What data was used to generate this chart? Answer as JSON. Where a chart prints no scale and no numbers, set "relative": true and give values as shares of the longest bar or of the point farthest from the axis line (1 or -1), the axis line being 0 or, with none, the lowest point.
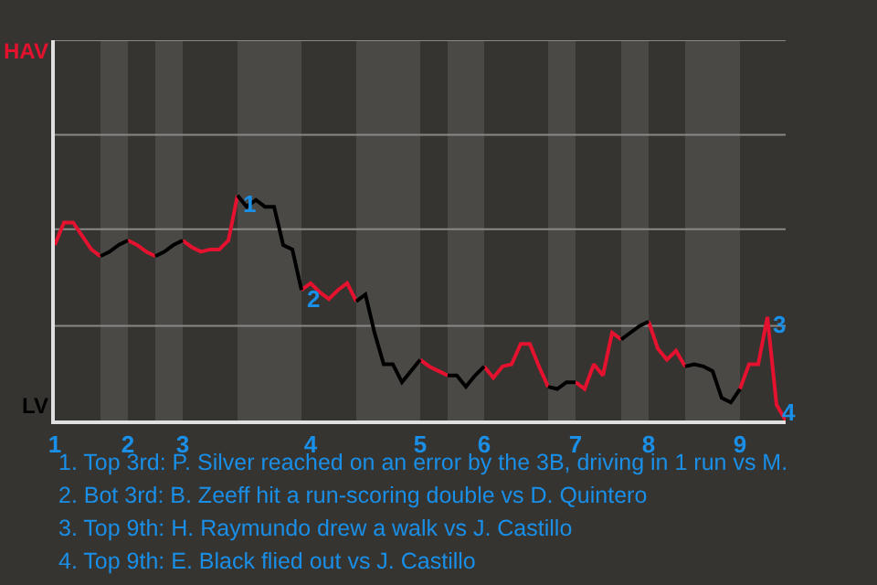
{
  "chart_data": {
    "type": "line",
    "relative": true,
    "categories": [
      "1",
      null,
      null,
      null,
      null,
      null,
      null,
      null,
      "2",
      null,
      null,
      null,
      null,
      null,
      "3",
      null,
      null,
      null,
      null,
      null,
      null,
      null,
      null,
      null,
      null,
      null,
      null,
      null,
      "4",
      null,
      null,
      null,
      null,
      null,
      null,
      null,
      null,
      null,
      null,
      null,
      "5",
      null,
      null,
      null,
      null,
      null,
      null,
      "6",
      null,
      null,
      null,
      null,
      null,
      null,
      null,
      null,
      null,
      "7",
      null,
      null,
      null,
      null,
      null,
      null,
      null,
      "8",
      null,
      null,
      null,
      null,
      null,
      null,
      null,
      null,
      null,
      "9",
      null,
      null,
      null,
      null,
      null
    ],
    "series": [
      {
        "color": "#e4122e",
        "values": [
          0.78,
          0.88,
          0.88,
          0.82,
          0.76,
          0.73,
          null,
          null,
          0.8,
          0.78,
          0.75,
          0.73,
          null,
          null,
          0.8,
          0.77,
          0.75,
          0.76,
          0.76,
          0.8,
          1,
          null,
          null,
          null,
          null,
          null,
          null,
          0.58,
          0.61,
          0.57,
          0.54,
          0.58,
          0.61,
          0.53,
          null,
          null,
          null,
          null,
          null,
          null,
          0.27,
          0.24,
          0.22,
          0.2,
          null,
          null,
          null,
          0.24,
          0.19,
          0.24,
          0.25,
          0.34,
          0.34,
          0.24,
          0.15,
          null,
          null,
          0.17,
          0.14,
          0.25,
          0.2,
          0.39,
          0.36,
          null,
          null,
          0.44,
          0.32,
          0.27,
          0.31,
          0.24,
          null,
          null,
          null,
          null,
          null,
          0.14,
          0.25,
          0.25,
          0.46,
          0.07,
          0
        ]
      },
      {
        "color": "#000000",
        "values": [
          null,
          null,
          null,
          null,
          null,
          0.73,
          0.75,
          0.78,
          0.8,
          null,
          null,
          0.73,
          0.75,
          0.78,
          0.8,
          null,
          null,
          null,
          null,
          null,
          1,
          0.95,
          0.98,
          0.95,
          0.95,
          0.78,
          0.76,
          0.58,
          null,
          null,
          null,
          null,
          null,
          0.53,
          0.56,
          0.39,
          0.25,
          0.25,
          0.17,
          0.22,
          0.27,
          null,
          null,
          0.2,
          0.2,
          0.15,
          0.2,
          0.24,
          null,
          null,
          null,
          null,
          null,
          null,
          0.15,
          0.14,
          0.17,
          0.17,
          null,
          null,
          null,
          null,
          0.36,
          0.39,
          0.42,
          0.44,
          null,
          null,
          null,
          0.24,
          0.25,
          0.24,
          0.22,
          0.1,
          0.08,
          0.14,
          null,
          null,
          null,
          null,
          null
        ]
      }
    ],
    "ref_lines": [
      {
        "axis": "y",
        "value": 0.42
      },
      {
        "axis": "y",
        "value": 0.85
      },
      {
        "axis": "y",
        "value": 1.27
      },
      {
        "axis": "y",
        "value": 1.69
      }
    ],
    "marker": "none",
    "line_style": "solid",
    "annotations": [
      "HAV",
      "LV",
      {
        "text": "1",
        "y": 1
      },
      {
        "text": "2",
        "y": 0.58
      },
      {
        "text": "3",
        "y": 0.46
      },
      {
        "text": "4",
        "y": 0.07
      },
      "1. Top 3rd: P. Silver reached on an error by the 3B, driving in 1 run vs M.",
      "2. Bot 3rd: B. Zeeff hit a run-scoring double vs D. Quintero",
      "3. Top 9th: H. Raymundo drew a walk vs J. Castillo",
      "4. Top 9th: E. Black flied out vs J. Castillo"
    ]
  }
}
